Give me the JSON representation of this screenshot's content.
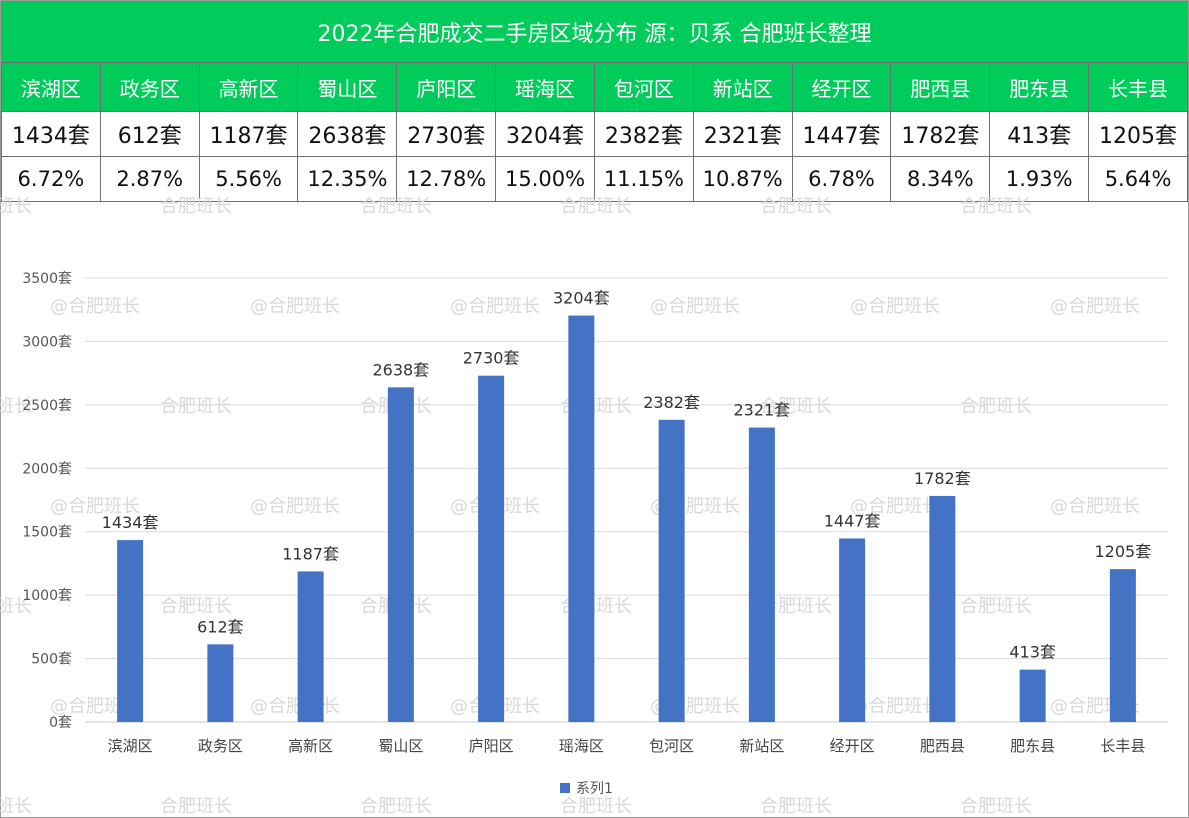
{
  "title": "2022年合肥成交二手房区域分布 源：贝系 合肥班长整理",
  "watermark_texts": [
    "合肥班长",
    "@合肥班长"
  ],
  "table": {
    "districts": [
      "滨湖区",
      "政务区",
      "高新区",
      "蜀山区",
      "庐阳区",
      "瑶海区",
      "包河区",
      "新站区",
      "经开区",
      "肥西县",
      "肥东县",
      "长丰县"
    ],
    "counts": [
      "1434套",
      "612套",
      "1187套",
      "2638套",
      "2730套",
      "3204套",
      "2382套",
      "2321套",
      "1447套",
      "1782套",
      "413套",
      "1205套"
    ],
    "percents": [
      "6.72%",
      "2.87%",
      "5.56%",
      "12.35%",
      "12.78%",
      "15.00%",
      "11.15%",
      "10.87%",
      "6.78%",
      "8.34%",
      "1.93%",
      "5.64%"
    ]
  },
  "colors": {
    "header_green": "#00cc5b",
    "bar": "#4472c4"
  },
  "chart_data": {
    "type": "bar",
    "categories": [
      "滨湖区",
      "政务区",
      "高新区",
      "蜀山区",
      "庐阳区",
      "瑶海区",
      "包河区",
      "新站区",
      "经开区",
      "肥西县",
      "肥东县",
      "长丰县"
    ],
    "series": [
      {
        "name": "系列1",
        "values": [
          1434,
          612,
          1187,
          2638,
          2730,
          3204,
          2382,
          2321,
          1447,
          1782,
          413,
          1205
        ]
      }
    ],
    "data_labels": [
      "1434套",
      "612套",
      "1187套",
      "2638套",
      "2730套",
      "3204套",
      "2382套",
      "2321套",
      "1447套",
      "1782套",
      "413套",
      "1205套"
    ],
    "yticks": [
      "0套",
      "500套",
      "1000套",
      "1500套",
      "2000套",
      "2500套",
      "3000套",
      "3500套"
    ],
    "ylim": [
      0,
      3500
    ],
    "grid": true,
    "legend": "bottom"
  }
}
